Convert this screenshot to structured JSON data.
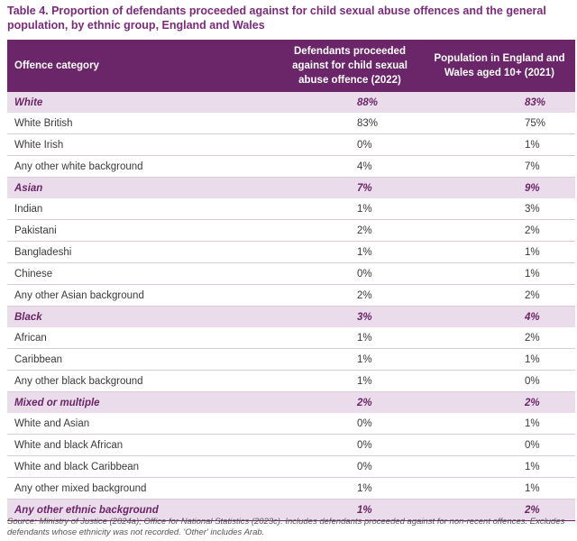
{
  "title": "Table 4. Proportion of defendants proceeded against for child sexual abuse offences and the general population, by ethnic group, England and Wales",
  "columns": {
    "category": "Offence category",
    "defendants": "Defendants proceeded against for child sexual abuse offence (2022)",
    "population": "Population in England and Wales aged 10+ (2021)"
  },
  "rows": [
    {
      "label": "White",
      "defendants": "88%",
      "population": "83%",
      "group": true
    },
    {
      "label": "White British",
      "defendants": "83%",
      "population": "75%",
      "group": false
    },
    {
      "label": "White Irish",
      "defendants": "0%",
      "population": "1%",
      "group": false
    },
    {
      "label": "Any other white background",
      "defendants": "4%",
      "population": "7%",
      "group": false
    },
    {
      "label": "Asian",
      "defendants": "7%",
      "population": "9%",
      "group": true
    },
    {
      "label": "Indian",
      "defendants": "1%",
      "population": "3%",
      "group": false
    },
    {
      "label": "Pakistani",
      "defendants": "2%",
      "population": "2%",
      "group": false
    },
    {
      "label": "Bangladeshi",
      "defendants": "1%",
      "population": "1%",
      "group": false
    },
    {
      "label": "Chinese",
      "defendants": "0%",
      "population": "1%",
      "group": false
    },
    {
      "label": "Any other Asian background",
      "defendants": "2%",
      "population": "2%",
      "group": false
    },
    {
      "label": "Black",
      "defendants": "3%",
      "population": "4%",
      "group": true
    },
    {
      "label": "African",
      "defendants": "1%",
      "population": "2%",
      "group": false
    },
    {
      "label": "Caribbean",
      "defendants": "1%",
      "population": "1%",
      "group": false
    },
    {
      "label": "Any other black background",
      "defendants": "1%",
      "population": "0%",
      "group": false
    },
    {
      "label": "Mixed or multiple",
      "defendants": "2%",
      "population": "2%",
      "group": true
    },
    {
      "label": "White and Asian",
      "defendants": "0%",
      "population": "1%",
      "group": false
    },
    {
      "label": "White and black African",
      "defendants": "0%",
      "population": "0%",
      "group": false
    },
    {
      "label": "White and black Caribbean",
      "defendants": "0%",
      "population": "1%",
      "group": false
    },
    {
      "label": "Any other mixed background",
      "defendants": "1%",
      "population": "1%",
      "group": false
    },
    {
      "label": "Any other ethnic background",
      "defendants": "1%",
      "population": "2%",
      "group": true
    }
  ],
  "source": "Source: Ministry of Justice (2024a); Office for National Statistics (2023c). Includes defendants proceeded against for non-recent offences. Excludes defendants whose ethnicity was not recorded. 'Other' includes Arab."
}
